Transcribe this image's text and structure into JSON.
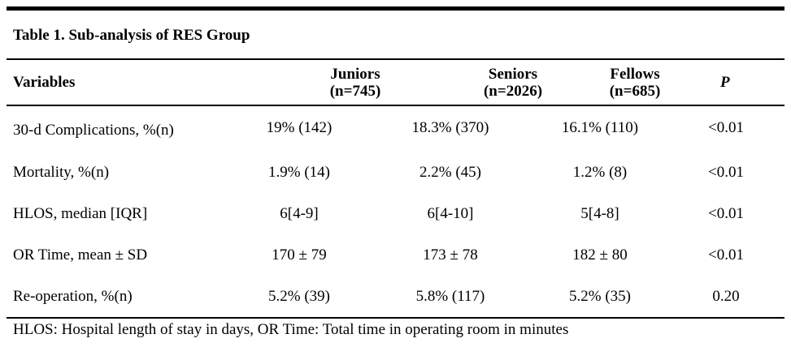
{
  "table": {
    "title": "Table 1. Sub-analysis of RES Group",
    "headers": {
      "variables": "Variables",
      "juniors": {
        "name": "Juniors",
        "n": "(n=745)"
      },
      "seniors": {
        "name": "Seniors",
        "n": "(n=2026)"
      },
      "fellows": {
        "name": "Fellows",
        "n": "(n=685)"
      },
      "p": "P"
    },
    "rows": [
      {
        "variable": "30-d Complications, %(n)",
        "juniors": "19% (142)",
        "seniors": "18.3% (370)",
        "fellows": "16.1% (110)",
        "p": "<0.01"
      },
      {
        "variable": "Mortality, %(n)",
        "juniors": "1.9% (14)",
        "seniors": "2.2% (45)",
        "fellows": "1.2% (8)",
        "p": "<0.01"
      },
      {
        "variable": "HLOS, median [IQR]",
        "juniors": "6[4-9]",
        "seniors": "6[4-10]",
        "fellows": "5[4-8]",
        "p": "<0.01"
      },
      {
        "variable": "OR Time, mean ± SD",
        "juniors": "170 ± 79",
        "seniors": "173 ± 78",
        "fellows": "182 ± 80",
        "p": "<0.01"
      },
      {
        "variable": "Re-operation, %(n)",
        "juniors": "5.2% (39)",
        "seniors": "5.8% (117)",
        "fellows": "5.2% (35)",
        "p": "0.20"
      }
    ],
    "footnote": "HLOS: Hospital length of stay in days, OR Time: Total time in operating room in minutes"
  }
}
